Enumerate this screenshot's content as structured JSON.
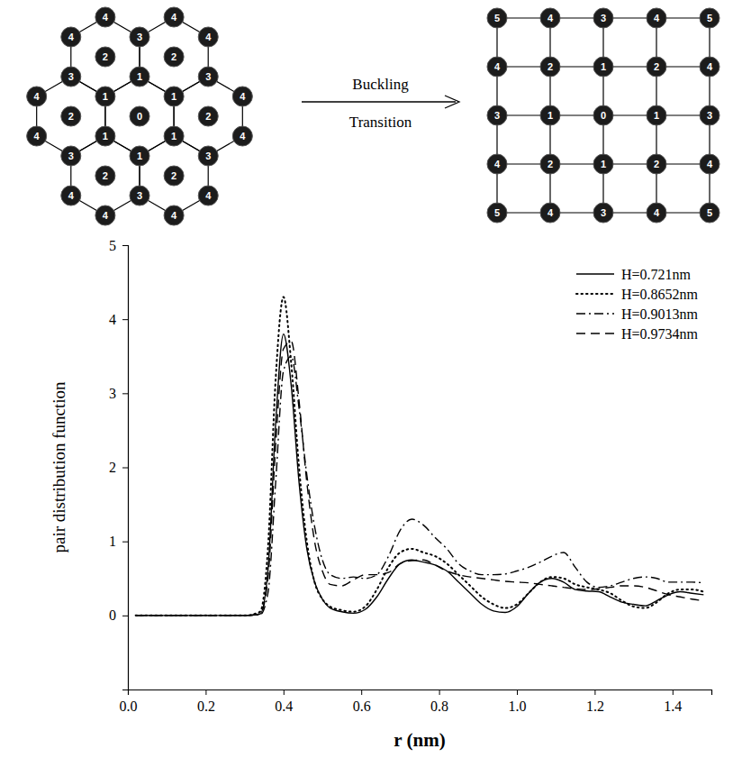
{
  "diagram": {
    "hexagonal": {
      "centers": [
        0,
        2,
        2,
        2,
        2,
        2,
        2
      ],
      "inner_vertices": [
        1,
        1,
        1,
        1,
        1,
        1
      ],
      "shared_vertices": [
        3,
        3,
        3,
        3,
        3,
        3
      ],
      "outer_vertices": [
        4,
        4,
        4,
        4,
        4,
        4,
        4,
        4,
        4,
        4,
        4,
        4
      ]
    },
    "arrow_label": [
      "Buckling",
      "Transition"
    ],
    "square": {
      "rows": [
        [
          5,
          4,
          3,
          4,
          5
        ],
        [
          4,
          2,
          1,
          2,
          4
        ],
        [
          3,
          1,
          0,
          1,
          3
        ],
        [
          4,
          2,
          1,
          2,
          4
        ],
        [
          5,
          4,
          3,
          4,
          5
        ]
      ]
    }
  },
  "chart_data": {
    "type": "line",
    "x_label": "r (nm)",
    "y_label": "pair distribution function",
    "x": [
      0.02,
      0.1,
      0.2,
      0.3,
      0.34,
      0.36,
      0.38,
      0.4,
      0.42,
      0.44,
      0.46,
      0.48,
      0.5,
      0.52,
      0.55,
      0.58,
      0.61,
      0.64,
      0.67,
      0.7,
      0.73,
      0.76,
      0.79,
      0.82,
      0.85,
      0.88,
      0.91,
      0.94,
      0.97,
      1.0,
      1.03,
      1.06,
      1.09,
      1.12,
      1.15,
      1.18,
      1.21,
      1.24,
      1.27,
      1.3,
      1.33,
      1.36,
      1.39,
      1.42,
      1.45,
      1.48
    ],
    "series": [
      {
        "name": "H=0.721nm",
        "color": "#000000",
        "line_style": "solid",
        "values": [
          0,
          0,
          0,
          0,
          0.02,
          0.6,
          2.6,
          3.8,
          3.1,
          1.8,
          0.9,
          0.45,
          0.22,
          0.1,
          0.05,
          0.03,
          0.08,
          0.25,
          0.5,
          0.7,
          0.75,
          0.72,
          0.68,
          0.6,
          0.45,
          0.3,
          0.15,
          0.06,
          0.04,
          0.12,
          0.3,
          0.45,
          0.5,
          0.45,
          0.35,
          0.33,
          0.32,
          0.25,
          0.18,
          0.15,
          0.13,
          0.2,
          0.28,
          0.32,
          0.3,
          0.28
        ]
      },
      {
        "name": "H=0.8652nm",
        "color": "#000000",
        "line_style": "dotted",
        "values": [
          0,
          0,
          0,
          0,
          0.05,
          0.9,
          3.2,
          4.3,
          3.4,
          2.0,
          1.0,
          0.45,
          0.22,
          0.12,
          0.07,
          0.05,
          0.12,
          0.35,
          0.65,
          0.85,
          0.9,
          0.85,
          0.8,
          0.7,
          0.55,
          0.4,
          0.25,
          0.15,
          0.1,
          0.15,
          0.3,
          0.45,
          0.52,
          0.5,
          0.42,
          0.38,
          0.35,
          0.3,
          0.2,
          0.12,
          0.1,
          0.18,
          0.3,
          0.35,
          0.35,
          0.32
        ]
      },
      {
        "name": "H=0.9013nm",
        "color": "#000000",
        "line_style": "dashdot",
        "values": [
          0,
          0,
          0,
          0,
          0.01,
          0.3,
          1.8,
          3.3,
          3.5,
          2.8,
          1.9,
          1.2,
          0.75,
          0.55,
          0.5,
          0.52,
          0.5,
          0.55,
          0.8,
          1.15,
          1.3,
          1.22,
          1.05,
          0.9,
          0.7,
          0.6,
          0.55,
          0.55,
          0.56,
          0.6,
          0.65,
          0.72,
          0.8,
          0.85,
          0.65,
          0.45,
          0.38,
          0.4,
          0.45,
          0.5,
          0.52,
          0.5,
          0.45,
          0.45,
          0.45,
          0.44
        ]
      },
      {
        "name": "H=0.9734nm",
        "color": "#000000",
        "line_style": "dashed",
        "values": [
          0,
          0,
          0,
          0,
          0.02,
          0.5,
          2.3,
          3.6,
          3.7,
          2.9,
          1.8,
          1.0,
          0.6,
          0.42,
          0.4,
          0.48,
          0.55,
          0.55,
          0.58,
          0.7,
          0.74,
          0.75,
          0.68,
          0.6,
          0.55,
          0.52,
          0.5,
          0.48,
          0.46,
          0.45,
          0.44,
          0.42,
          0.4,
          0.38,
          0.36,
          0.35,
          0.36,
          0.38,
          0.4,
          0.4,
          0.38,
          0.33,
          0.28,
          0.25,
          0.22,
          0.2
        ]
      }
    ],
    "xlim": [
      0,
      1.5
    ],
    "ylim": [
      -1,
      5
    ],
    "xticks": [
      {
        "value": 0,
        "label": "0.0"
      },
      {
        "value": 0.2,
        "label": "0.2"
      },
      {
        "value": 0.4,
        "label": "0.4"
      },
      {
        "value": 0.6,
        "label": "0.6"
      },
      {
        "value": 0.8,
        "label": "0.8"
      },
      {
        "value": 1.0,
        "label": "1.0"
      },
      {
        "value": 1.2,
        "label": "1.2"
      },
      {
        "value": 1.4,
        "label": "1.4"
      }
    ],
    "yticks": [
      0,
      1,
      2,
      3,
      4,
      5
    ],
    "grid": false,
    "legend": "upper right"
  }
}
